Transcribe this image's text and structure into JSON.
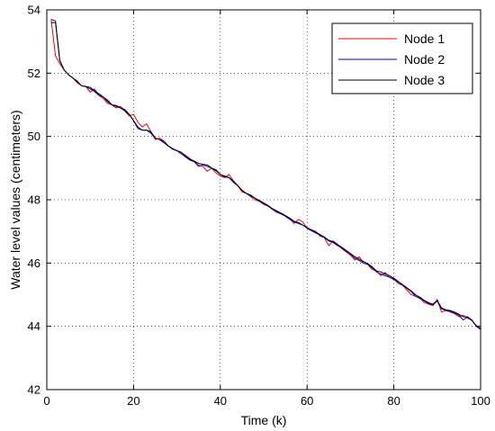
{
  "chart_data": {
    "type": "line",
    "title": "",
    "xlabel": "Time (k)",
    "ylabel": "Water level values (centimeters)",
    "xlim": [
      0,
      100
    ],
    "ylim": [
      42,
      54
    ],
    "xticks": [
      "0",
      "20",
      "40",
      "60",
      "80",
      "100"
    ],
    "yticks": [
      "42",
      "44",
      "46",
      "48",
      "50",
      "52",
      "54"
    ],
    "grid": true,
    "legend_position": "top-right",
    "x": [
      1,
      2,
      3,
      4,
      5,
      6,
      7,
      8,
      9,
      10,
      11,
      12,
      13,
      14,
      15,
      16,
      17,
      18,
      19,
      20,
      21,
      22,
      23,
      24,
      25,
      26,
      27,
      28,
      29,
      30,
      31,
      32,
      33,
      34,
      35,
      36,
      37,
      38,
      39,
      40,
      41,
      42,
      43,
      44,
      45,
      46,
      47,
      48,
      49,
      50,
      51,
      52,
      53,
      54,
      55,
      56,
      57,
      58,
      59,
      60,
      61,
      62,
      63,
      64,
      65,
      66,
      67,
      68,
      69,
      70,
      71,
      72,
      73,
      74,
      75,
      76,
      77,
      78,
      79,
      80,
      81,
      82,
      83,
      84,
      85,
      86,
      87,
      88,
      89,
      90,
      91,
      92,
      93,
      94,
      95,
      96,
      97,
      98,
      99,
      100
    ],
    "series": [
      {
        "name": "Node 1",
        "color": "#ff0000",
        "values": [
          53.7,
          52.55,
          52.3,
          52.1,
          51.95,
          51.85,
          51.7,
          51.6,
          51.58,
          51.4,
          51.5,
          51.3,
          51.2,
          51.05,
          51.0,
          50.9,
          50.95,
          50.8,
          50.65,
          50.7,
          50.45,
          50.3,
          50.4,
          50.15,
          49.9,
          49.95,
          49.85,
          49.7,
          49.6,
          49.55,
          49.5,
          49.4,
          49.3,
          49.2,
          49.1,
          49.05,
          48.9,
          49.0,
          48.85,
          48.75,
          48.7,
          48.8,
          48.6,
          48.45,
          48.25,
          48.2,
          48.1,
          48.0,
          47.95,
          47.85,
          47.8,
          47.7,
          47.6,
          47.55,
          47.5,
          47.4,
          47.25,
          47.38,
          47.3,
          47.1,
          47.05,
          47.0,
          46.85,
          46.8,
          46.55,
          46.7,
          46.6,
          46.45,
          46.35,
          46.25,
          46.1,
          46.2,
          46.0,
          45.95,
          45.8,
          45.75,
          45.6,
          45.7,
          45.55,
          45.5,
          45.35,
          45.3,
          45.15,
          45.0,
          44.95,
          44.9,
          44.75,
          44.7,
          44.65,
          44.85,
          44.45,
          44.5,
          44.45,
          44.4,
          44.3,
          44.35,
          44.25,
          44.2,
          44.0,
          43.9
        ]
      },
      {
        "name": "Node 2",
        "color": "#0000cc",
        "values": [
          53.7,
          53.65,
          52.4,
          52.1,
          51.95,
          51.85,
          51.72,
          51.6,
          51.58,
          51.5,
          51.42,
          51.3,
          51.25,
          51.1,
          51.0,
          50.95,
          50.9,
          50.8,
          50.7,
          50.5,
          50.25,
          50.2,
          50.2,
          50.1,
          49.95,
          49.9,
          49.8,
          49.7,
          49.6,
          49.55,
          49.45,
          49.35,
          49.25,
          49.2,
          49.05,
          49.1,
          49.05,
          49.0,
          48.95,
          48.8,
          48.72,
          48.7,
          48.55,
          48.45,
          48.3,
          48.2,
          48.12,
          48.05,
          47.95,
          47.88,
          47.8,
          47.7,
          47.62,
          47.55,
          47.48,
          47.38,
          47.3,
          47.25,
          47.2,
          47.1,
          47.02,
          46.95,
          46.88,
          46.8,
          46.7,
          46.65,
          46.55,
          46.48,
          46.38,
          46.28,
          46.15,
          46.08,
          46.0,
          45.95,
          45.85,
          45.72,
          45.65,
          45.6,
          45.55,
          45.48,
          45.4,
          45.3,
          45.2,
          45.1,
          44.95,
          44.88,
          44.8,
          44.72,
          44.68,
          44.8,
          44.55,
          44.5,
          44.48,
          44.42,
          44.35,
          44.2,
          44.3,
          44.2,
          44.0,
          43.92
        ]
      },
      {
        "name": "Node 3",
        "color": "#000000",
        "values": [
          53.6,
          53.6,
          52.4,
          52.1,
          51.95,
          51.85,
          51.75,
          51.6,
          51.58,
          51.55,
          51.45,
          51.35,
          51.25,
          51.15,
          51.0,
          50.98,
          50.9,
          50.85,
          50.7,
          50.5,
          50.3,
          50.2,
          50.2,
          50.15,
          49.95,
          49.9,
          49.85,
          49.7,
          49.62,
          49.55,
          49.5,
          49.38,
          49.28,
          49.22,
          49.15,
          49.12,
          49.1,
          49.0,
          48.92,
          48.8,
          48.75,
          48.7,
          48.6,
          48.45,
          48.3,
          48.2,
          48.15,
          48.05,
          47.98,
          47.9,
          47.82,
          47.72,
          47.65,
          47.58,
          47.5,
          47.42,
          47.32,
          47.28,
          47.2,
          47.12,
          47.05,
          46.98,
          46.9,
          46.82,
          46.72,
          46.68,
          46.58,
          46.5,
          46.4,
          46.3,
          46.2,
          46.12,
          46.05,
          45.98,
          45.88,
          45.75,
          45.72,
          45.65,
          45.6,
          45.52,
          45.42,
          45.32,
          45.22,
          45.12,
          45.0,
          44.92,
          44.82,
          44.75,
          44.7,
          44.82,
          44.58,
          44.52,
          44.5,
          44.45,
          44.38,
          44.3,
          44.3,
          44.18,
          44.02,
          43.93
        ]
      }
    ]
  }
}
